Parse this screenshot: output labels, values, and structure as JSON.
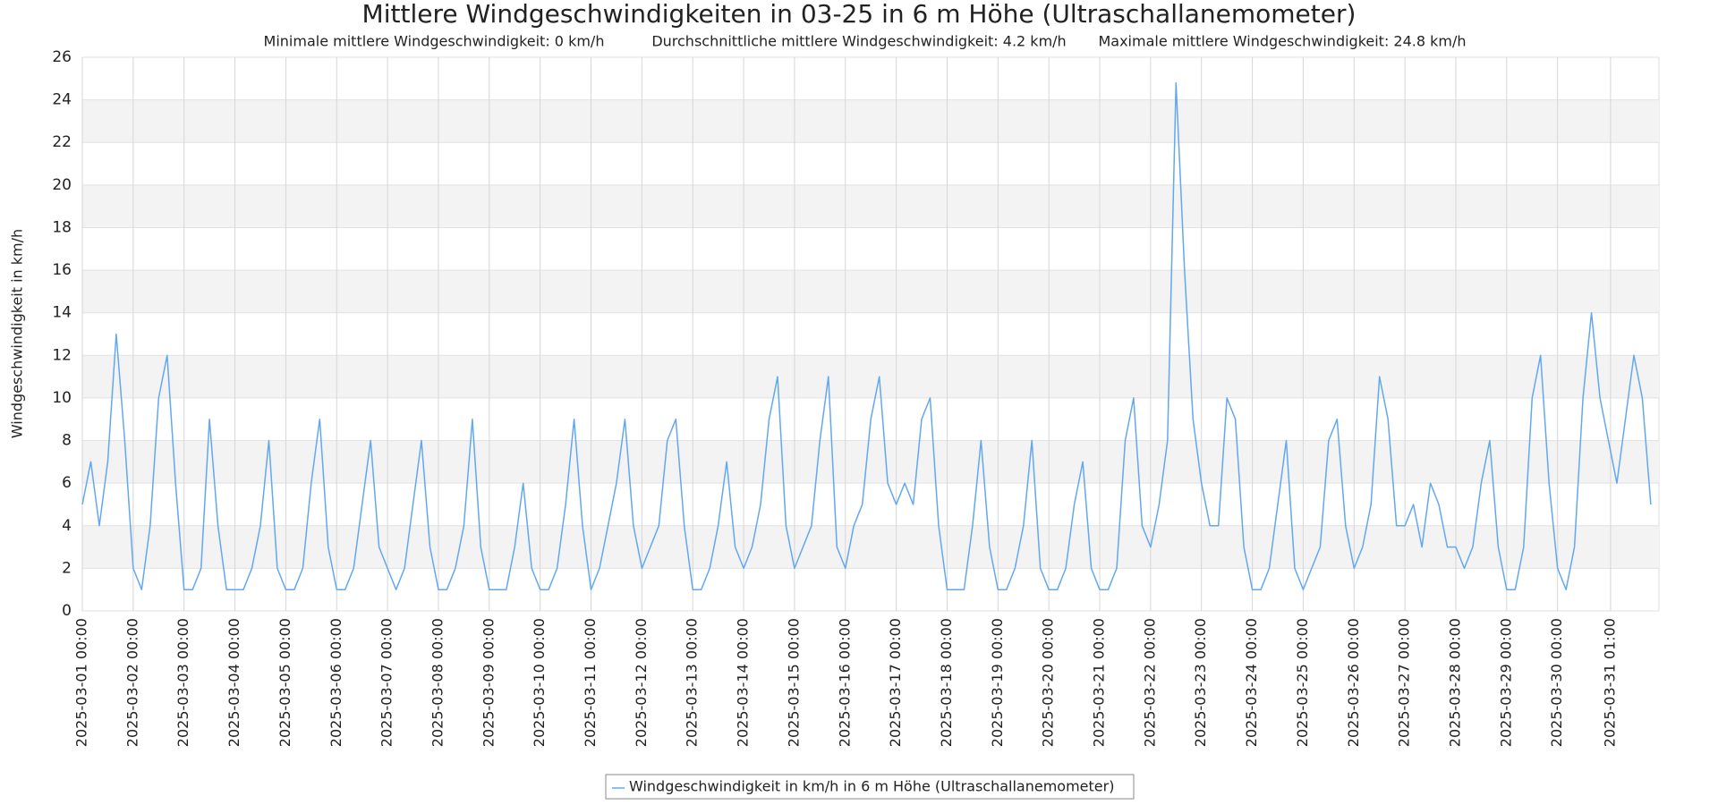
{
  "chart_data": {
    "type": "line",
    "title": "Mittlere Windgeschwindigkeiten in 03-25 in 6 m Höhe (Ultraschallanemometer)",
    "subtitles": [
      "Minimale mittlere Windgeschwindigkeit: 0 km/h",
      "Durchschnittliche mittlere Windgeschwindigkeit: 4.2 km/h",
      "Maximale mittlere Windgeschwindigkeit: 24.8 km/h"
    ],
    "y_label": "Windgeschwindigkeit in km/h",
    "ylim": [
      0,
      26
    ],
    "yticks": [
      0,
      2,
      4,
      6,
      8,
      10,
      12,
      14,
      16,
      18,
      20,
      22,
      24,
      26
    ],
    "xlim": [
      "2025-03-01 00:00",
      "2025-03-31 23:50"
    ],
    "xticks": [
      "2025-03-01 00:00",
      "2025-03-02 00:00",
      "2025-03-03 00:00",
      "2025-03-04 00:00",
      "2025-03-05 00:00",
      "2025-03-06 00:00",
      "2025-03-07 00:00",
      "2025-03-08 00:00",
      "2025-03-09 00:00",
      "2025-03-10 00:00",
      "2025-03-11 00:00",
      "2025-03-12 00:00",
      "2025-03-13 00:00",
      "2025-03-14 00:00",
      "2025-03-15 00:00",
      "2025-03-16 00:00",
      "2025-03-17 00:00",
      "2025-03-18 00:00",
      "2025-03-19 00:00",
      "2025-03-20 00:00",
      "2025-03-21 00:00",
      "2025-03-22 00:00",
      "2025-03-23 00:00",
      "2025-03-24 00:00",
      "2025-03-25 00:00",
      "2025-03-26 00:00",
      "2025-03-27 00:00",
      "2025-03-28 00:00",
      "2025-03-29 00:00",
      "2025-03-30 00:00",
      "2025-03-31 01:00"
    ],
    "grid": true,
    "legend": "bottom",
    "x": [
      "2025-03-01 00:00",
      "2025-03-01 04:00",
      "2025-03-01 08:00",
      "2025-03-01 12:00",
      "2025-03-01 16:00",
      "2025-03-01 20:00",
      "2025-03-02 00:00",
      "2025-03-02 04:00",
      "2025-03-02 08:00",
      "2025-03-02 12:00",
      "2025-03-02 16:00",
      "2025-03-02 20:00",
      "2025-03-03 00:00",
      "2025-03-03 04:00",
      "2025-03-03 08:00",
      "2025-03-03 12:00",
      "2025-03-03 16:00",
      "2025-03-03 20:00",
      "2025-03-04 00:00",
      "2025-03-04 04:00",
      "2025-03-04 08:00",
      "2025-03-04 12:00",
      "2025-03-04 16:00",
      "2025-03-04 20:00",
      "2025-03-05 00:00",
      "2025-03-05 04:00",
      "2025-03-05 08:00",
      "2025-03-05 12:00",
      "2025-03-05 16:00",
      "2025-03-05 20:00",
      "2025-03-06 00:00",
      "2025-03-06 04:00",
      "2025-03-06 08:00",
      "2025-03-06 12:00",
      "2025-03-06 16:00",
      "2025-03-06 20:00",
      "2025-03-07 00:00",
      "2025-03-07 04:00",
      "2025-03-07 08:00",
      "2025-03-07 12:00",
      "2025-03-07 16:00",
      "2025-03-07 20:00",
      "2025-03-08 00:00",
      "2025-03-08 04:00",
      "2025-03-08 08:00",
      "2025-03-08 12:00",
      "2025-03-08 16:00",
      "2025-03-08 20:00",
      "2025-03-09 00:00",
      "2025-03-09 04:00",
      "2025-03-09 08:00",
      "2025-03-09 12:00",
      "2025-03-09 16:00",
      "2025-03-09 20:00",
      "2025-03-10 00:00",
      "2025-03-10 04:00",
      "2025-03-10 08:00",
      "2025-03-10 12:00",
      "2025-03-10 16:00",
      "2025-03-10 20:00",
      "2025-03-11 00:00",
      "2025-03-11 04:00",
      "2025-03-11 08:00",
      "2025-03-11 12:00",
      "2025-03-11 16:00",
      "2025-03-11 20:00",
      "2025-03-12 00:00",
      "2025-03-12 04:00",
      "2025-03-12 08:00",
      "2025-03-12 12:00",
      "2025-03-12 16:00",
      "2025-03-12 20:00",
      "2025-03-13 00:00",
      "2025-03-13 04:00",
      "2025-03-13 08:00",
      "2025-03-13 12:00",
      "2025-03-13 16:00",
      "2025-03-13 20:00",
      "2025-03-14 00:00",
      "2025-03-14 04:00",
      "2025-03-14 08:00",
      "2025-03-14 12:00",
      "2025-03-14 16:00",
      "2025-03-14 20:00",
      "2025-03-15 00:00",
      "2025-03-15 04:00",
      "2025-03-15 08:00",
      "2025-03-15 12:00",
      "2025-03-15 16:00",
      "2025-03-15 20:00",
      "2025-03-16 00:00",
      "2025-03-16 04:00",
      "2025-03-16 08:00",
      "2025-03-16 12:00",
      "2025-03-16 16:00",
      "2025-03-16 20:00",
      "2025-03-17 00:00",
      "2025-03-17 04:00",
      "2025-03-17 08:00",
      "2025-03-17 12:00",
      "2025-03-17 16:00",
      "2025-03-17 20:00",
      "2025-03-18 00:00",
      "2025-03-18 04:00",
      "2025-03-18 08:00",
      "2025-03-18 12:00",
      "2025-03-18 16:00",
      "2025-03-18 20:00",
      "2025-03-19 00:00",
      "2025-03-19 04:00",
      "2025-03-19 08:00",
      "2025-03-19 12:00",
      "2025-03-19 16:00",
      "2025-03-19 20:00",
      "2025-03-20 00:00",
      "2025-03-20 04:00",
      "2025-03-20 08:00",
      "2025-03-20 12:00",
      "2025-03-20 16:00",
      "2025-03-20 20:00",
      "2025-03-21 00:00",
      "2025-03-21 04:00",
      "2025-03-21 08:00",
      "2025-03-21 12:00",
      "2025-03-21 16:00",
      "2025-03-21 20:00",
      "2025-03-22 00:00",
      "2025-03-22 04:00",
      "2025-03-22 08:00",
      "2025-03-22 12:00",
      "2025-03-22 16:00",
      "2025-03-22 20:00",
      "2025-03-23 00:00",
      "2025-03-23 04:00",
      "2025-03-23 08:00",
      "2025-03-23 12:00",
      "2025-03-23 16:00",
      "2025-03-23 20:00",
      "2025-03-24 00:00",
      "2025-03-24 04:00",
      "2025-03-24 08:00",
      "2025-03-24 12:00",
      "2025-03-24 16:00",
      "2025-03-24 20:00",
      "2025-03-25 00:00",
      "2025-03-25 04:00",
      "2025-03-25 08:00",
      "2025-03-25 12:00",
      "2025-03-25 16:00",
      "2025-03-25 20:00",
      "2025-03-26 00:00",
      "2025-03-26 04:00",
      "2025-03-26 08:00",
      "2025-03-26 12:00",
      "2025-03-26 16:00",
      "2025-03-26 20:00",
      "2025-03-27 00:00",
      "2025-03-27 04:00",
      "2025-03-27 08:00",
      "2025-03-27 12:00",
      "2025-03-27 16:00",
      "2025-03-27 20:00",
      "2025-03-28 00:00",
      "2025-03-28 04:00",
      "2025-03-28 08:00",
      "2025-03-28 12:00",
      "2025-03-28 16:00",
      "2025-03-28 20:00",
      "2025-03-29 00:00",
      "2025-03-29 04:00",
      "2025-03-29 08:00",
      "2025-03-29 12:00",
      "2025-03-29 16:00",
      "2025-03-29 20:00",
      "2025-03-30 00:00",
      "2025-03-30 04:00",
      "2025-03-30 08:00",
      "2025-03-30 12:00",
      "2025-03-30 16:00",
      "2025-03-30 20:00",
      "2025-03-31 00:00",
      "2025-03-31 04:00",
      "2025-03-31 08:00",
      "2025-03-31 12:00",
      "2025-03-31 16:00",
      "2025-03-31 20:00"
    ],
    "series": [
      {
        "name": "Windgeschwindigkeit in km/h in 6 m Höhe (Ultraschallanemometer)",
        "color": "#62a8f0",
        "values": [
          5,
          7,
          4,
          7,
          13,
          8,
          2,
          1,
          4,
          10,
          12,
          6,
          1,
          1,
          2,
          9,
          4,
          1,
          1,
          1,
          2,
          4,
          8,
          2,
          1,
          1,
          2,
          6,
          9,
          3,
          1,
          1,
          2,
          5,
          8,
          3,
          2,
          1,
          2,
          5,
          8,
          3,
          1,
          1,
          2,
          4,
          9,
          3,
          1,
          1,
          1,
          3,
          6,
          2,
          1,
          1,
          2,
          5,
          9,
          4,
          1,
          2,
          4,
          6,
          9,
          4,
          2,
          3,
          4,
          8,
          9,
          4,
          1,
          1,
          2,
          4,
          7,
          3,
          2,
          3,
          5,
          9,
          11,
          4,
          2,
          3,
          4,
          8,
          11,
          3,
          2,
          4,
          5,
          9,
          11,
          6,
          5,
          6,
          5,
          9,
          10,
          4,
          1,
          1,
          1,
          4,
          8,
          3,
          1,
          1,
          2,
          4,
          8,
          2,
          1,
          1,
          2,
          5,
          7,
          2,
          1,
          1,
          2,
          8,
          10,
          4,
          3,
          5,
          8,
          24.8,
          16,
          9,
          6,
          4,
          4,
          10,
          9,
          3,
          1,
          1,
          2,
          5,
          8,
          2,
          1,
          2,
          3,
          8,
          9,
          4,
          2,
          3,
          5,
          11,
          9,
          4,
          4,
          5,
          3,
          6,
          5,
          3,
          3,
          2,
          3,
          6,
          8,
          3,
          1,
          1,
          3,
          10,
          12,
          6,
          2,
          1,
          3,
          10,
          14,
          10,
          8,
          6,
          9,
          12,
          10,
          5
        ]
      }
    ]
  }
}
